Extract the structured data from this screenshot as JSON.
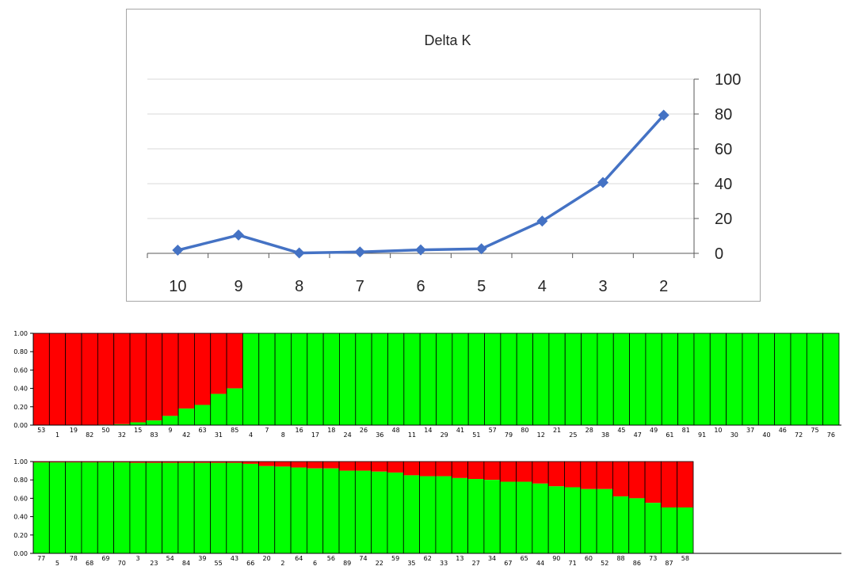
{
  "chart_data": [
    {
      "type": "line",
      "title": "Delta K",
      "x_categories": [
        "10",
        "9",
        "8",
        "7",
        "6",
        "5",
        "4",
        "3",
        "2"
      ],
      "series": [
        {
          "values": [
            1.8,
            10.5,
            0.2,
            0.8,
            2.0,
            2.6,
            18.5,
            40.7,
            79.3
          ]
        }
      ],
      "y_ticks": [
        "0",
        "20",
        "40",
        "60",
        "80",
        "100"
      ],
      "ylim": [
        0,
        100
      ],
      "y_axis_side": "right",
      "grid": true,
      "color": "#4472c4"
    },
    {
      "type": "bar",
      "stacked": true,
      "y_ticks": [
        "0.00",
        "0.20",
        "0.40",
        "0.60",
        "0.80",
        "1.00"
      ],
      "ylim": [
        0,
        1
      ],
      "colors": {
        "red": "#ff0000",
        "green": "#00ff00"
      },
      "categories": [
        "53",
        "1",
        "19",
        "82",
        "50",
        "32",
        "15",
        "83",
        "9",
        "42",
        "63",
        "31",
        "85",
        "4",
        "7",
        "8",
        "16",
        "17",
        "18",
        "24",
        "26",
        "36",
        "48",
        "11",
        "14",
        "29",
        "41",
        "51",
        "57",
        "79",
        "80",
        "12",
        "21",
        "25",
        "28",
        "38",
        "45",
        "47",
        "49",
        "61",
        "81",
        "91",
        "10",
        "30",
        "37",
        "40",
        "46",
        "72",
        "75",
        "76"
      ],
      "red_fraction": [
        1.0,
        1.0,
        1.0,
        1.0,
        0.995,
        0.99,
        0.97,
        0.95,
        0.9,
        0.82,
        0.78,
        0.66,
        0.6,
        0.0,
        0.0,
        0.0,
        0.0,
        0.0,
        0.0,
        0.0,
        0.0,
        0.0,
        0.0,
        0.0,
        0.0,
        0.0,
        0.0,
        0.0,
        0.0,
        0.0,
        0.0,
        0.0,
        0.0,
        0.0,
        0.0,
        0.0,
        0.0,
        0.0,
        0.0,
        0.0,
        0.0,
        0.0,
        0.0,
        0.0,
        0.0,
        0.0,
        0.0,
        0.0,
        0.0,
        0.0
      ]
    },
    {
      "type": "bar",
      "stacked": true,
      "y_ticks": [
        "0.00",
        "0.20",
        "0.40",
        "0.60",
        "0.80",
        "1.00"
      ],
      "ylim": [
        0,
        1
      ],
      "colors": {
        "red": "#ff0000",
        "green": "#00ff00"
      },
      "categories": [
        "77",
        "5",
        "78",
        "68",
        "69",
        "70",
        "3",
        "23",
        "54",
        "84",
        "39",
        "55",
        "43",
        "66",
        "20",
        "2",
        "64",
        "6",
        "56",
        "89",
        "74",
        "22",
        "59",
        "35",
        "62",
        "33",
        "13",
        "27",
        "34",
        "67",
        "65",
        "44",
        "90",
        "71",
        "60",
        "52",
        "88",
        "86",
        "73",
        "87",
        "58"
      ],
      "red_fraction": [
        0.01,
        0.01,
        0.01,
        0.01,
        0.01,
        0.01,
        0.015,
        0.015,
        0.015,
        0.015,
        0.015,
        0.015,
        0.015,
        0.025,
        0.05,
        0.055,
        0.065,
        0.075,
        0.075,
        0.1,
        0.1,
        0.11,
        0.12,
        0.15,
        0.16,
        0.16,
        0.18,
        0.19,
        0.2,
        0.22,
        0.22,
        0.24,
        0.27,
        0.28,
        0.3,
        0.3,
        0.38,
        0.4,
        0.45,
        0.5,
        0.5
      ]
    }
  ]
}
